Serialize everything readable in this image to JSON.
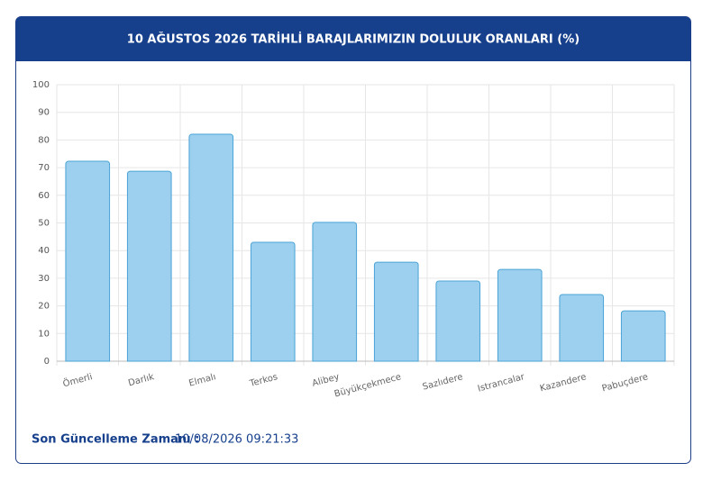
{
  "chart_data": {
    "type": "bar",
    "title": "10 AĞUSTOS 2026 TARİHLİ BARAJLARIMIZIN DOLULUK ORANLARI (%)",
    "categories": [
      "Ömerli",
      "Darlık",
      "Elmalı",
      "Terkos",
      "Alibey",
      "Büyükçekmece",
      "Sazlıdere",
      "Istrancalar",
      "Kazandere",
      "Pabuçdere"
    ],
    "values": [
      72.3,
      68.7,
      82.1,
      43,
      50.2,
      35.8,
      29,
      33.2,
      24.1,
      18.2
    ],
    "color": "#9dd0ee",
    "ylim": [
      0,
      100
    ],
    "yticks": [
      0,
      10,
      20,
      30,
      40,
      50,
      60,
      70,
      80,
      90,
      100
    ],
    "grid": true
  },
  "footer": {
    "label": "Son Güncelleme Zamanı :",
    "value": "10/08/2026 09:21:33"
  }
}
